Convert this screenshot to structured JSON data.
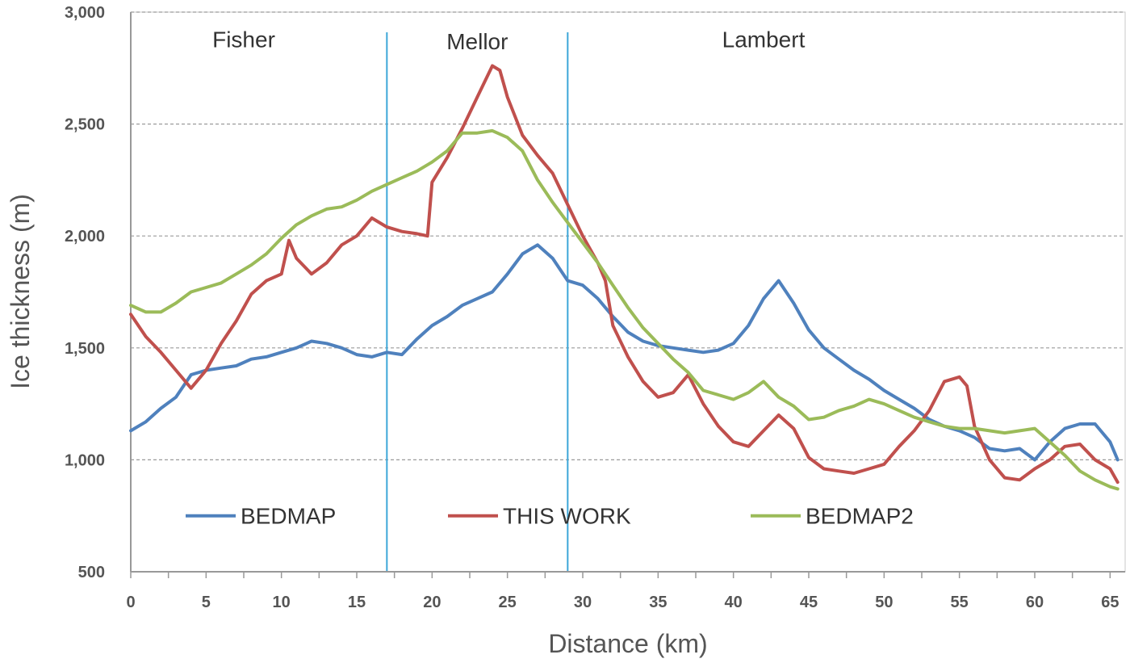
{
  "chart_data": {
    "type": "line",
    "xlabel": "Distance (km)",
    "ylabel": "Ice thickness (m)",
    "xlim": [
      0,
      66
    ],
    "ylim": [
      500,
      3000
    ],
    "xticks": [
      0,
      5,
      10,
      15,
      20,
      25,
      30,
      35,
      40,
      45,
      50,
      55,
      60,
      65
    ],
    "yticks": [
      500,
      1000,
      1500,
      2000,
      2500,
      3000
    ],
    "ytick_labels": [
      "500",
      "1,000",
      "1,500",
      "2,000",
      "2,500",
      "3,000"
    ],
    "grid": "horizontal-dashed",
    "legend_position": "bottom",
    "vlines": [
      17,
      29
    ],
    "vline_color": "#3da6d8",
    "regions": [
      {
        "label": "Fisher",
        "x": 7.5,
        "y": 2880
      },
      {
        "label": "Mellor",
        "x": 23,
        "y": 2870
      },
      {
        "label": "Lambert",
        "x": 42,
        "y": 2880
      }
    ],
    "series": [
      {
        "name": "BEDMAP",
        "color": "#4f81bd",
        "x": [
          0,
          1,
          2,
          3,
          4,
          5,
          6,
          7,
          8,
          9,
          10,
          11,
          12,
          13,
          14,
          15,
          16,
          17,
          18,
          19,
          20,
          21,
          22,
          23,
          24,
          25,
          26,
          27,
          28,
          29,
          30,
          31,
          32,
          33,
          34,
          35,
          36,
          37,
          38,
          39,
          40,
          41,
          42,
          43,
          44,
          45,
          46,
          47,
          48,
          49,
          50,
          51,
          52,
          53,
          54,
          55,
          56,
          57,
          58,
          59,
          60,
          61,
          62,
          63,
          64,
          65,
          65.5
        ],
        "y": [
          1130,
          1170,
          1230,
          1280,
          1380,
          1400,
          1410,
          1420,
          1450,
          1460,
          1480,
          1500,
          1530,
          1520,
          1500,
          1470,
          1460,
          1480,
          1470,
          1540,
          1600,
          1640,
          1690,
          1720,
          1750,
          1830,
          1920,
          1960,
          1900,
          1800,
          1780,
          1720,
          1640,
          1570,
          1530,
          1510,
          1500,
          1490,
          1480,
          1490,
          1520,
          1600,
          1720,
          1800,
          1700,
          1580,
          1500,
          1450,
          1400,
          1360,
          1310,
          1270,
          1230,
          1180,
          1150,
          1130,
          1100,
          1050,
          1040,
          1050,
          1000,
          1080,
          1140,
          1160,
          1160,
          1080,
          1000
        ]
      },
      {
        "name": "THIS WORK",
        "color": "#c0504d",
        "x": [
          0,
          1,
          2,
          3,
          4,
          5,
          6,
          7,
          8,
          9,
          10,
          10.5,
          11,
          12,
          13,
          14,
          15,
          16,
          17,
          18,
          19,
          19.7,
          20,
          21,
          22,
          23,
          24,
          24.5,
          25,
          26,
          27,
          28,
          29,
          30,
          31,
          31.5,
          32,
          33,
          34,
          35,
          36,
          37,
          38,
          39,
          40,
          41,
          42,
          43,
          44,
          45,
          46,
          47,
          48,
          49,
          50,
          51,
          52,
          53,
          54,
          55,
          55.5,
          56,
          57,
          58,
          59,
          60,
          61,
          62,
          63,
          64,
          65,
          65.5
        ],
        "y": [
          1650,
          1550,
          1480,
          1400,
          1320,
          1400,
          1520,
          1620,
          1740,
          1800,
          1830,
          1980,
          1900,
          1830,
          1880,
          1960,
          2000,
          2080,
          2040,
          2020,
          2010,
          2000,
          2240,
          2350,
          2480,
          2620,
          2760,
          2740,
          2620,
          2450,
          2360,
          2280,
          2140,
          2000,
          1880,
          1800,
          1600,
          1460,
          1350,
          1280,
          1300,
          1380,
          1250,
          1150,
          1080,
          1060,
          1130,
          1200,
          1140,
          1010,
          960,
          950,
          940,
          960,
          980,
          1060,
          1130,
          1220,
          1350,
          1370,
          1330,
          1150,
          1000,
          920,
          910,
          960,
          1000,
          1060,
          1070,
          1000,
          960,
          900
        ]
      },
      {
        "name": "BEDMAP2",
        "color": "#9bbb59",
        "x": [
          0,
          1,
          2,
          3,
          4,
          5,
          6,
          7,
          8,
          9,
          10,
          11,
          12,
          13,
          14,
          15,
          16,
          17,
          18,
          19,
          20,
          21,
          22,
          23,
          24,
          25,
          26,
          27,
          28,
          29,
          30,
          31,
          32,
          33,
          34,
          35,
          36,
          37,
          38,
          39,
          40,
          41,
          42,
          43,
          44,
          45,
          46,
          47,
          48,
          49,
          50,
          51,
          52,
          53,
          54,
          55,
          56,
          57,
          58,
          59,
          60,
          61,
          62,
          63,
          64,
          65,
          65.5
        ],
        "y": [
          1690,
          1660,
          1660,
          1700,
          1750,
          1770,
          1790,
          1830,
          1870,
          1920,
          1990,
          2050,
          2090,
          2120,
          2130,
          2160,
          2200,
          2230,
          2260,
          2290,
          2330,
          2380,
          2460,
          2460,
          2470,
          2440,
          2380,
          2250,
          2150,
          2060,
          1970,
          1880,
          1780,
          1680,
          1590,
          1520,
          1450,
          1390,
          1310,
          1290,
          1270,
          1300,
          1350,
          1280,
          1240,
          1180,
          1190,
          1220,
          1240,
          1270,
          1250,
          1220,
          1190,
          1170,
          1150,
          1140,
          1140,
          1130,
          1120,
          1130,
          1140,
          1080,
          1020,
          950,
          910,
          880,
          870
        ]
      }
    ]
  }
}
